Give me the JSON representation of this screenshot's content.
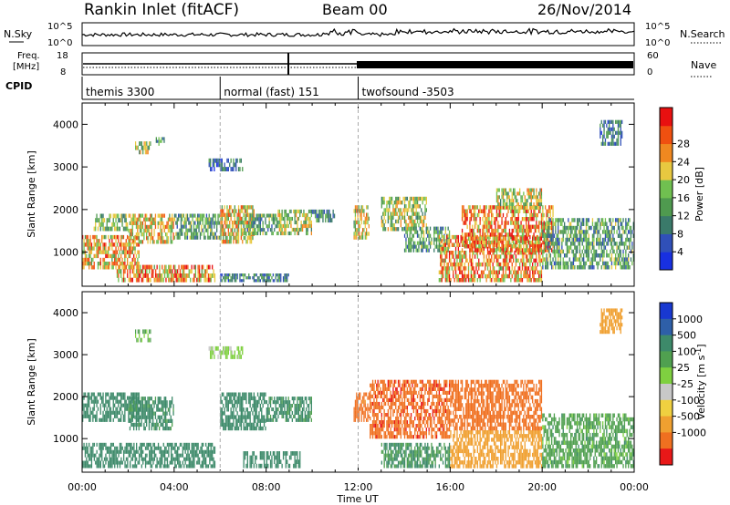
{
  "header": {
    "station": "Rankin Inlet (fitACF)",
    "beam": "Beam 00",
    "date": "26/Nov/2014"
  },
  "labels": {
    "nsky": "N.Sky",
    "nsearch": "N.Search",
    "freq_line1": "Freq.",
    "freq_line2": "[MHz]",
    "nave": "Nave",
    "cpid": "CPID"
  },
  "ticks": {
    "noise_top": "10^5",
    "noise_bottom": "10^0",
    "freq_top": "18",
    "freq_bottom": "8",
    "nave_top": "60",
    "nave_bottom": "0"
  },
  "cpid_segments": [
    {
      "label": "themis 3300",
      "start_hour": 0
    },
    {
      "label": "normal (fast) 151",
      "start_hour": 6
    },
    {
      "label": "twofsound -3503",
      "start_hour": 12
    }
  ],
  "chart_data": [
    {
      "type": "heatmap",
      "quantity": "power",
      "ylabel": "Slant Range [km]",
      "xlabel": "",
      "ylim": [
        200,
        4500
      ],
      "yticks": [
        1000,
        2000,
        3000,
        4000
      ],
      "xlim_hours": [
        0,
        24
      ],
      "colorbar": {
        "label": "Power [dB]",
        "tick_labels": [
          "4",
          "8",
          "12",
          "16",
          "20",
          "24",
          "28"
        ],
        "colors": [
          "#1830e0",
          "#3050b8",
          "#3a7a6a",
          "#4f9a4f",
          "#70c050",
          "#e8c840",
          "#f08820",
          "#f05010",
          "#e81010"
        ]
      },
      "echo_regions": [
        {
          "t0": 0.0,
          "t1": 2.5,
          "r0": 600,
          "r1": 1400,
          "value": 24
        },
        {
          "t0": 0.5,
          "t1": 2.0,
          "r0": 1500,
          "r1": 1900,
          "value": 16
        },
        {
          "t0": 2.0,
          "t1": 4.0,
          "r0": 1200,
          "r1": 1900,
          "value": 22
        },
        {
          "t0": 1.5,
          "t1": 5.8,
          "r0": 300,
          "r1": 700,
          "value": 26
        },
        {
          "t0": 4.0,
          "t1": 6.0,
          "r0": 1300,
          "r1": 1900,
          "value": 14
        },
        {
          "t0": 2.3,
          "t1": 3.0,
          "r0": 3300,
          "r1": 3600,
          "value": 18
        },
        {
          "t0": 3.2,
          "t1": 3.6,
          "r0": 3500,
          "r1": 3700,
          "value": 12
        },
        {
          "t0": 5.5,
          "t1": 7.0,
          "r0": 2900,
          "r1": 3200,
          "value": 8
        },
        {
          "t0": 6.0,
          "t1": 7.5,
          "r0": 1200,
          "r1": 2100,
          "value": 22
        },
        {
          "t0": 7.0,
          "t1": 8.5,
          "r0": 1400,
          "r1": 1900,
          "value": 14
        },
        {
          "t0": 8.5,
          "t1": 10.0,
          "r0": 1400,
          "r1": 2000,
          "value": 18
        },
        {
          "t0": 6.0,
          "t1": 9.0,
          "r0": 300,
          "r1": 500,
          "value": 10
        },
        {
          "t0": 10.0,
          "t1": 11.0,
          "r0": 1700,
          "r1": 2000,
          "value": 12
        },
        {
          "t0": 11.8,
          "t1": 12.5,
          "r0": 1300,
          "r1": 2100,
          "value": 20
        },
        {
          "t0": 13.0,
          "t1": 15.0,
          "r0": 1500,
          "r1": 2300,
          "value": 18
        },
        {
          "t0": 14.0,
          "t1": 16.0,
          "r0": 1000,
          "r1": 1600,
          "value": 14
        },
        {
          "t0": 15.5,
          "t1": 20.0,
          "r0": 300,
          "r1": 1400,
          "value": 26
        },
        {
          "t0": 16.5,
          "t1": 20.5,
          "r0": 1000,
          "r1": 2100,
          "value": 27
        },
        {
          "t0": 20.0,
          "t1": 24.0,
          "r0": 600,
          "r1": 1800,
          "value": 14
        },
        {
          "t0": 18.0,
          "t1": 20.0,
          "r0": 2000,
          "r1": 2500,
          "value": 20
        },
        {
          "t0": 22.5,
          "t1": 23.5,
          "r0": 3500,
          "r1": 4100,
          "value": 10
        }
      ]
    },
    {
      "type": "heatmap",
      "quantity": "velocity",
      "ylabel": "Slant Range [km]",
      "xlabel": "Time UT",
      "ylim": [
        200,
        4500
      ],
      "yticks": [
        1000,
        2000,
        3000,
        4000
      ],
      "xlim_hours": [
        0,
        24
      ],
      "xtick_labels": [
        "00:00",
        "04:00",
        "08:00",
        "12:00",
        "16:00",
        "20:00",
        "00:00"
      ],
      "colorbar": {
        "label": "Velocity [m s^-1]",
        "tick_labels": [
          "1000",
          "500",
          "100",
          "25",
          "-25",
          "-100",
          "-500",
          "-1000"
        ],
        "colors": [
          "#1838d0",
          "#2e5fa8",
          "#3d8a6a",
          "#50a050",
          "#7fd040",
          "#c8c8c8",
          "#f0d040",
          "#f0a030",
          "#f07020",
          "#e81818"
        ]
      },
      "echo_regions": [
        {
          "t0": 0.0,
          "t1": 2.5,
          "r0": 1400,
          "r1": 2100,
          "value": 200
        },
        {
          "t0": 0.0,
          "t1": 5.8,
          "r0": 300,
          "r1": 900,
          "value": 150
        },
        {
          "t0": 2.0,
          "t1": 4.0,
          "r0": 1200,
          "r1": 2000,
          "value": 120
        },
        {
          "t0": 2.3,
          "t1": 3.0,
          "r0": 3300,
          "r1": 3600,
          "value": 60
        },
        {
          "t0": 5.5,
          "t1": 7.0,
          "r0": 2900,
          "r1": 3200,
          "value": 30
        },
        {
          "t0": 6.0,
          "t1": 8.0,
          "r0": 1200,
          "r1": 2100,
          "value": 300
        },
        {
          "t0": 7.0,
          "t1": 9.5,
          "r0": 300,
          "r1": 700,
          "value": 250
        },
        {
          "t0": 8.0,
          "t1": 10.0,
          "r0": 1400,
          "r1": 2000,
          "value": 120
        },
        {
          "t0": 11.8,
          "t1": 12.5,
          "r0": 1400,
          "r1": 2100,
          "value": -400
        },
        {
          "t0": 12.5,
          "t1": 16.0,
          "r0": 1000,
          "r1": 2400,
          "value": -600
        },
        {
          "t0": 13.0,
          "t1": 16.0,
          "r0": 300,
          "r1": 900,
          "value": 100
        },
        {
          "t0": 16.0,
          "t1": 20.0,
          "r0": 300,
          "r1": 1200,
          "value": -200
        },
        {
          "t0": 16.0,
          "t1": 20.0,
          "r0": 1200,
          "r1": 2400,
          "value": -500
        },
        {
          "t0": 20.0,
          "t1": 24.0,
          "r0": 300,
          "r1": 1600,
          "value": 80
        },
        {
          "t0": 22.5,
          "t1": 23.5,
          "r0": 3500,
          "r1": 4100,
          "value": -150
        }
      ]
    }
  ]
}
